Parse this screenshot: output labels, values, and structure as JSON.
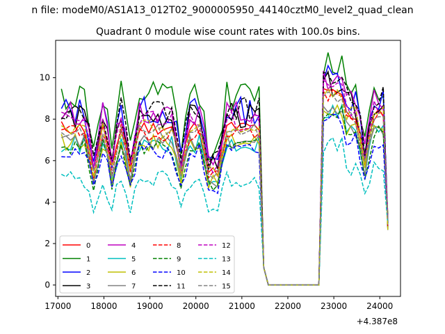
{
  "chart_data": {
    "type": "line",
    "suptitle": "n file: modeM0/AS1A13_012T02_9000005950_44140cztM0_level2_quad_clean",
    "title": "Quadrant 0 module wise count rates with 100.0s bins.",
    "xlabel": "",
    "ylabel": "",
    "offset_text": "+4.387e8",
    "xlim": [
      16950,
      24450
    ],
    "ylim": [
      -0.55,
      11.8
    ],
    "xticks": [
      17000,
      18000,
      19000,
      20000,
      21000,
      22000,
      23000,
      24000
    ],
    "xtick_labels": [
      "17000",
      "18000",
      "19000",
      "20000",
      "21000",
      "22000",
      "23000",
      "24000"
    ],
    "yticks": [
      0,
      2,
      4,
      6,
      8,
      10
    ],
    "ytick_labels": [
      "0",
      "2",
      "4",
      "6",
      "8",
      "10"
    ],
    "legend_position": "lower-left",
    "series": [
      {
        "name": "0",
        "color": "#ff0000",
        "dash": "solid",
        "base": 7.6,
        "amp": 0.35,
        "seed": 11
      },
      {
        "name": "1",
        "color": "#008000",
        "dash": "solid",
        "base": 9.1,
        "amp": 0.75,
        "seed": 12
      },
      {
        "name": "2",
        "color": "#0000ff",
        "dash": "solid",
        "base": 8.4,
        "amp": 0.7,
        "seed": 13
      },
      {
        "name": "3",
        "color": "#000000",
        "dash": "solid",
        "base": 8.1,
        "amp": 0.6,
        "seed": 14
      },
      {
        "name": "4",
        "color": "#bf00bf",
        "dash": "solid",
        "base": 8.3,
        "amp": 0.55,
        "seed": 15
      },
      {
        "name": "5",
        "color": "#00bfbf",
        "dash": "solid",
        "base": 6.8,
        "amp": 0.45,
        "seed": 16
      },
      {
        "name": "6",
        "color": "#bfbf00",
        "dash": "solid",
        "base": 6.9,
        "amp": 0.45,
        "seed": 17
      },
      {
        "name": "7",
        "color": "#808080",
        "dash": "solid",
        "base": 6.9,
        "amp": 0.4,
        "seed": 18
      },
      {
        "name": "8",
        "color": "#ff0000",
        "dash": "dashed",
        "base": 7.4,
        "amp": 0.45,
        "seed": 19
      },
      {
        "name": "9",
        "color": "#008000",
        "dash": "dashed",
        "base": 6.7,
        "amp": 0.4,
        "seed": 20
      },
      {
        "name": "10",
        "color": "#0000ff",
        "dash": "dashed",
        "base": 6.4,
        "amp": 0.45,
        "seed": 21
      },
      {
        "name": "11",
        "color": "#000000",
        "dash": "dashed",
        "base": 8.5,
        "amp": 0.55,
        "seed": 22
      },
      {
        "name": "12",
        "color": "#bf00bf",
        "dash": "dashed",
        "base": 7.9,
        "amp": 0.5,
        "seed": 23
      },
      {
        "name": "13",
        "color": "#00bfbf",
        "dash": "dashed",
        "base": 5.1,
        "amp": 0.45,
        "seed": 24
      },
      {
        "name": "14",
        "color": "#bfbf00",
        "dash": "dashed",
        "base": 7.6,
        "amp": 0.4,
        "seed": 25
      },
      {
        "name": "15",
        "color": "#808080",
        "dash": "dashed",
        "base": 7.4,
        "amp": 0.4,
        "seed": 26
      }
    ],
    "x_start": 17075,
    "x_step": 100,
    "n_points": 72,
    "gap_start": 21575,
    "gap_end": 22675,
    "dips": [
      17775,
      18175,
      18575,
      19675,
      20275,
      20375,
      20475,
      23675
    ],
    "last_value_approx": 3.0
  }
}
